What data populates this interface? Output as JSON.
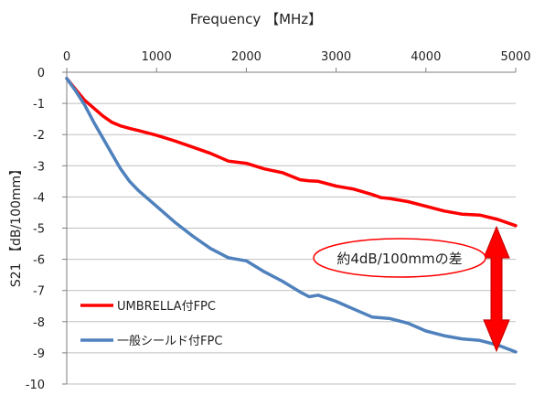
{
  "chart_data": {
    "type": "line",
    "xlabel": "Frequency 【MHz】",
    "ylabel": "S21 【dB/100mm】",
    "xlim": [
      0,
      5000
    ],
    "ylim": [
      -10,
      0
    ],
    "x_ticks": [
      "0",
      "1000",
      "2000",
      "3000",
      "4000",
      "5000"
    ],
    "y_ticks": [
      "0",
      "-1",
      "-2",
      "-3",
      "-4",
      "-5",
      "-6",
      "-7",
      "-8",
      "-9",
      "-10"
    ],
    "x_axis_position": "top",
    "grid": "horizontal",
    "legend_position": "bottom-left",
    "series": [
      {
        "name": "UMBRELLA付FPC",
        "color": "#ff0000",
        "x": [
          0,
          100,
          200,
          300,
          400,
          500,
          600,
          700,
          800,
          1000,
          1200,
          1400,
          1600,
          1800,
          2000,
          2200,
          2400,
          2600,
          2700,
          2800,
          3000,
          3200,
          3400,
          3500,
          3600,
          3800,
          4000,
          4200,
          4400,
          4600,
          4800,
          5000
        ],
        "y": [
          -0.2,
          -0.55,
          -0.9,
          -1.15,
          -1.4,
          -1.6,
          -1.72,
          -1.8,
          -1.87,
          -2.02,
          -2.2,
          -2.4,
          -2.6,
          -2.85,
          -2.92,
          -3.1,
          -3.22,
          -3.45,
          -3.48,
          -3.5,
          -3.65,
          -3.75,
          -3.92,
          -4.02,
          -4.05,
          -4.15,
          -4.3,
          -4.45,
          -4.55,
          -4.58,
          -4.72,
          -4.92
        ]
      },
      {
        "name": "一般シールド付FPC",
        "color": "#4f81bd",
        "x": [
          0,
          100,
          200,
          300,
          400,
          500,
          600,
          700,
          800,
          1000,
          1200,
          1400,
          1600,
          1800,
          2000,
          2200,
          2400,
          2600,
          2700,
          2800,
          3000,
          3200,
          3400,
          3600,
          3800,
          4000,
          4200,
          4400,
          4600,
          4800,
          5000
        ],
        "y": [
          -0.2,
          -0.6,
          -1.05,
          -1.6,
          -2.1,
          -2.6,
          -3.1,
          -3.5,
          -3.8,
          -4.3,
          -4.8,
          -5.25,
          -5.65,
          -5.95,
          -6.05,
          -6.4,
          -6.7,
          -7.05,
          -7.2,
          -7.15,
          -7.35,
          -7.6,
          -7.85,
          -7.9,
          -8.05,
          -8.3,
          -8.45,
          -8.55,
          -8.6,
          -8.75,
          -8.97
        ]
      }
    ],
    "annotation": {
      "text": "約4dB/100mmの差",
      "x": 5000,
      "y_from": -4.9,
      "y_to": -9.0,
      "ellipse_color": "#ff0000",
      "arrow_color": "#ff0000"
    }
  }
}
